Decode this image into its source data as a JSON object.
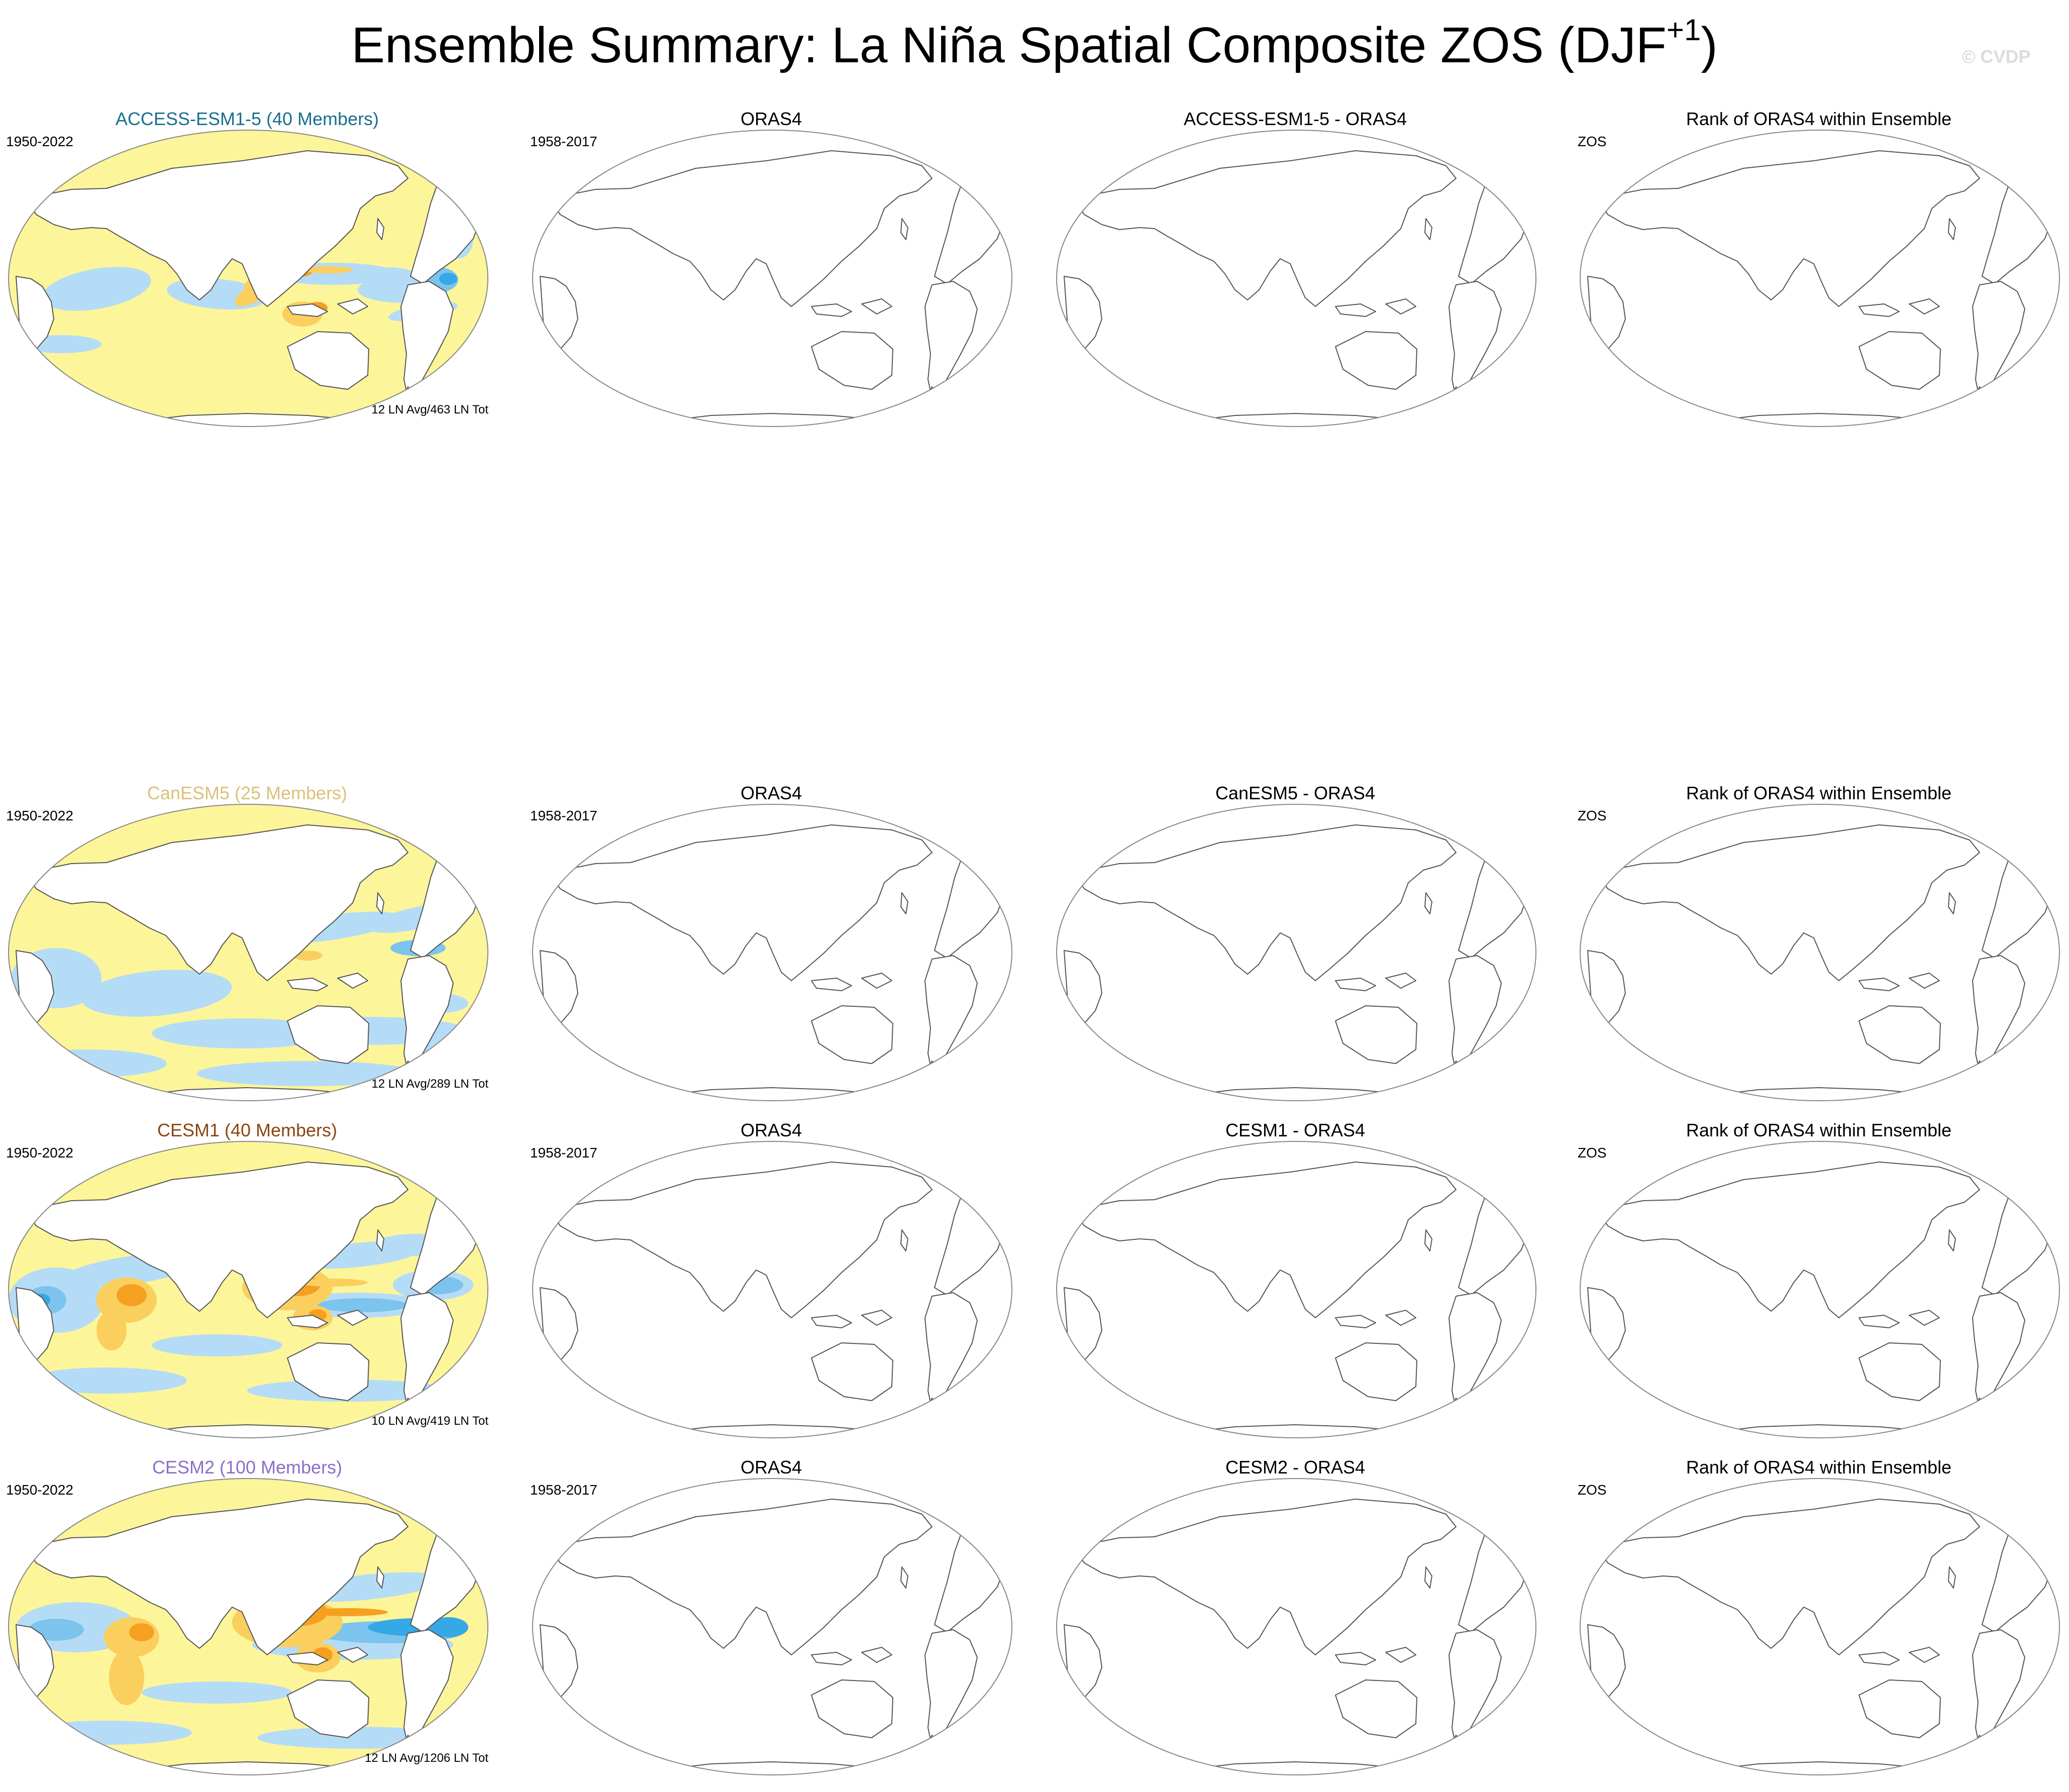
{
  "title": {
    "main": "Ensemble Summary: La Niña Spatial Composite ZOS (DJF",
    "superscript": "+1",
    "close": ")"
  },
  "watermark": "© CVDP",
  "rows": [
    {
      "model": "ACCESS-ESM1-5",
      "model_title": "ACCESS-ESM1-5 (40 Members)",
      "model_color": "#1a6e8e",
      "model_period": "1950-2022",
      "composite_note": "12 LN Avg/463 LN Tot",
      "pattern": "access",
      "obs_title": "ORAS4",
      "obs_period": "1958-2017",
      "diff_title": "ACCESS-ESM1-5 - ORAS4",
      "rank_title": "Rank of ORAS4 within Ensemble",
      "rank_var": "ZOS"
    },
    {
      "model": "CanESM5",
      "model_title": "CanESM5 (25 Members)",
      "model_color": "#d9c27a",
      "model_period": "1950-2022",
      "composite_note": "12 LN Avg/289 LN Tot",
      "pattern": "canesm",
      "obs_title": "ORAS4",
      "obs_period": "1958-2017",
      "diff_title": "CanESM5 - ORAS4",
      "rank_title": "Rank of ORAS4 within Ensemble",
      "rank_var": "ZOS"
    },
    {
      "model": "CESM1",
      "model_title": "CESM1 (40 Members)",
      "model_color": "#8b4513",
      "model_period": "1950-2022",
      "composite_note": "10 LN Avg/419 LN Tot",
      "pattern": "cesm1",
      "obs_title": "ORAS4",
      "obs_period": "1958-2017",
      "diff_title": "CESM1 - ORAS4",
      "rank_title": "Rank of ORAS4 within Ensemble",
      "rank_var": "ZOS"
    },
    {
      "model": "CESM2",
      "model_title": "CESM2 (100 Members)",
      "model_color": "#8a6fc9",
      "model_period": "1950-2022",
      "composite_note": "12 LN Avg/1206 LN Tot",
      "pattern": "cesm2",
      "obs_title": "ORAS4",
      "obs_period": "1958-2017",
      "diff_title": "CESM2 - ORAS4",
      "rank_title": "Rank of ORAS4 within Ensemble",
      "rank_var": "ZOS"
    }
  ],
  "colors": {
    "yellow": "#fdf59a",
    "light_blue": "#b5dcf6",
    "mid_blue": "#7cc4ee",
    "deep_blue": "#35a8e6",
    "light_orange": "#fbcf5e",
    "orange": "#f5a020",
    "red_orange": "#e8601c",
    "coast": "#555555",
    "border": "#888888"
  }
}
